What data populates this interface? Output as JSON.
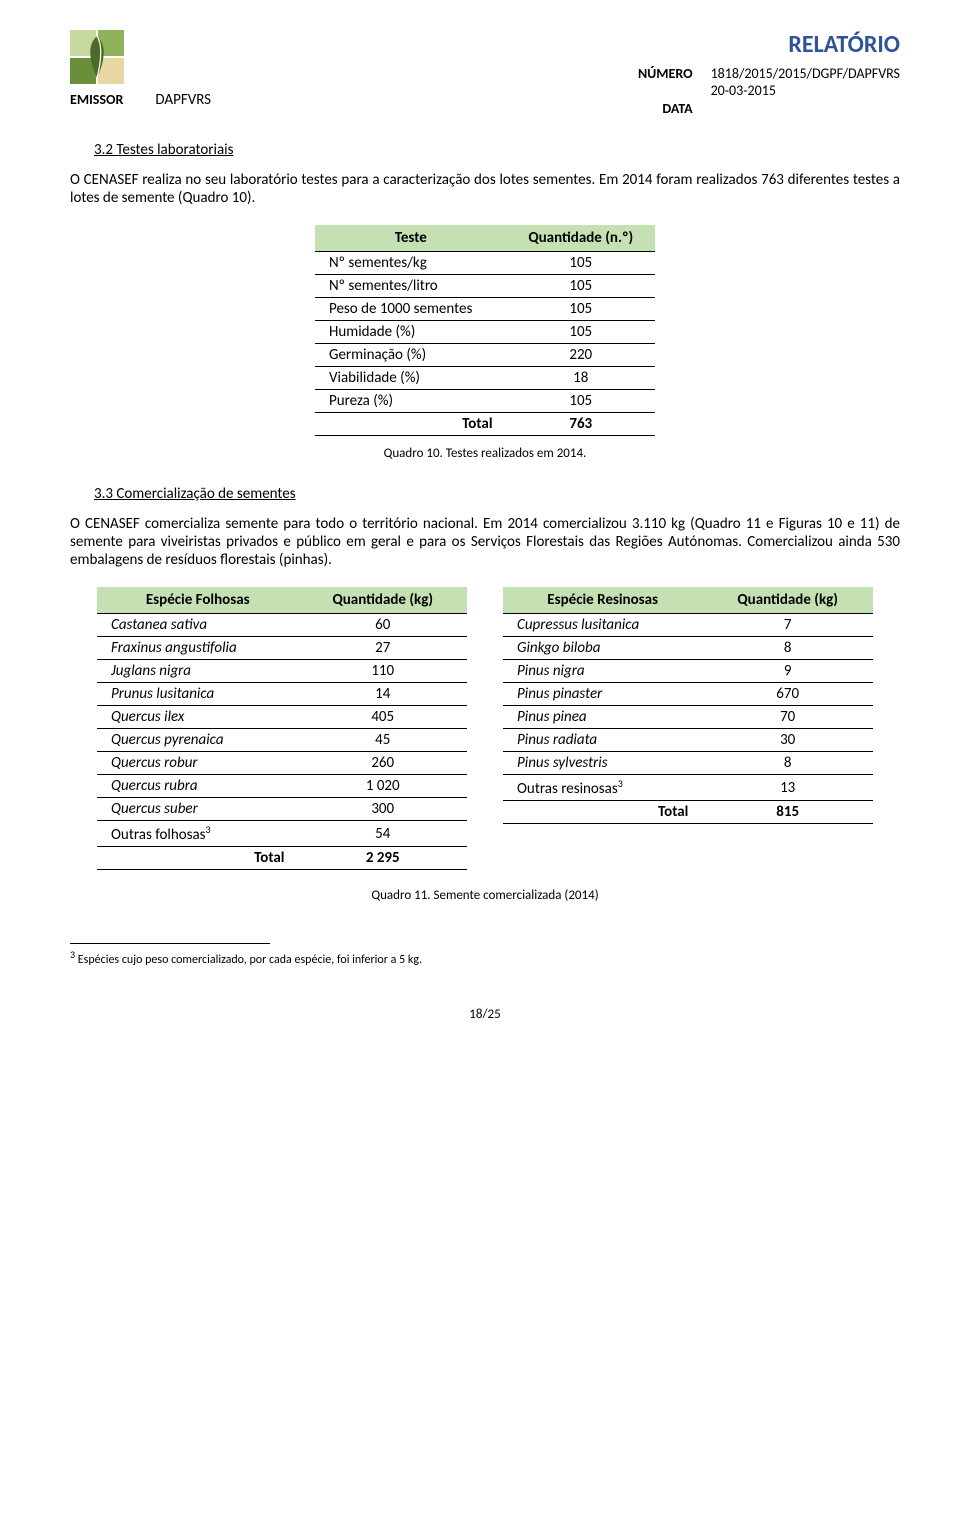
{
  "header": {
    "doc_title": "RELATÓRIO",
    "emissor_label": "EMISSOR",
    "emissor_value": "DAPFVRS",
    "numero_label": "NÚMERO",
    "numero_value": "1818/2015/2015/DGPF/DAPFVRS",
    "data_label": "DATA",
    "data_value": "20-03-2015"
  },
  "s32": {
    "heading": "3.2 Testes laboratoriais",
    "para": "O CENASEF realiza no seu laboratório testes para a caracterização dos lotes sementes. Em 2014 foram realizados 763 diferentes testes a lotes de semente (Quadro 10).",
    "table": {
      "col1": "Teste",
      "col2": "Quantidade (n.º)",
      "rows": [
        {
          "label": "Nº sementes/kg",
          "val": "105"
        },
        {
          "label": "Nº sementes/litro",
          "val": "105"
        },
        {
          "label": "Peso de 1000 sementes",
          "val": "105"
        },
        {
          "label": "Humidade (%)",
          "val": "105"
        },
        {
          "label": "Germinação (%)",
          "val": "220"
        },
        {
          "label": "Viabilidade (%)",
          "val": "18"
        },
        {
          "label": "Pureza (%)",
          "val": "105"
        }
      ],
      "total_label": "Total",
      "total_val": "763"
    },
    "caption": "Quadro 10. Testes realizados em 2014."
  },
  "s33": {
    "heading": "3.3 Comercialização de sementes",
    "para": "O CENASEF comercializa semente para todo o território nacional. Em 2014 comercializou 3.110 kg (Quadro 11 e Figuras 10 e 11) de semente para viveiristas privados e público em geral e para os Serviços Florestais das Regiões Autónomas. Comercializou ainda 530 embalagens de resíduos florestais (pinhas).",
    "left": {
      "col1": "Espécie Folhosas",
      "col2": "Quantidade (kg)",
      "rows": [
        {
          "label": "Castanea sativa",
          "val": "60"
        },
        {
          "label": "Fraxinus angustifolia",
          "val": "27"
        },
        {
          "label": "Juglans nigra",
          "val": "110"
        },
        {
          "label": "Prunus lusitanica",
          "val": "14"
        },
        {
          "label": "Quercus ilex",
          "val": "405"
        },
        {
          "label": "Quercus pyrenaica",
          "val": "45"
        },
        {
          "label": "Quercus robur",
          "val": "260"
        },
        {
          "label": "Quercus rubra",
          "val": "1 020"
        },
        {
          "label": "Quercus suber",
          "val": "300"
        }
      ],
      "outras_label": "Outras folhosas",
      "outras_val": "54",
      "total_label": "Total",
      "total_val": "2 295"
    },
    "right": {
      "col1": "Espécie Resinosas",
      "col2": "Quantidade (kg)",
      "rows": [
        {
          "label": "Cupressus lusitanica",
          "val": "7"
        },
        {
          "label": "Ginkgo biloba",
          "val": "8"
        },
        {
          "label": "Pinus nigra",
          "val": "9"
        },
        {
          "label": "Pinus pinaster",
          "val": "670"
        },
        {
          "label": "Pinus pinea",
          "val": "70"
        },
        {
          "label": "Pinus radiata",
          "val": "30"
        },
        {
          "label": "Pinus sylvestris",
          "val": "8"
        }
      ],
      "outras_label": "Outras resinosas",
      "outras_val": "13",
      "total_label": "Total",
      "total_val": "815"
    },
    "caption": "Quadro 11. Semente comercializada (2014)"
  },
  "footnote": {
    "marker": "3",
    "text": " Espécies cujo peso comercializado, por cada espécie, foi inferior a 5 kg."
  },
  "page_num": "18/25",
  "colors": {
    "title_color": "#2f5496",
    "table_header_bg": "#c5e0b3"
  }
}
